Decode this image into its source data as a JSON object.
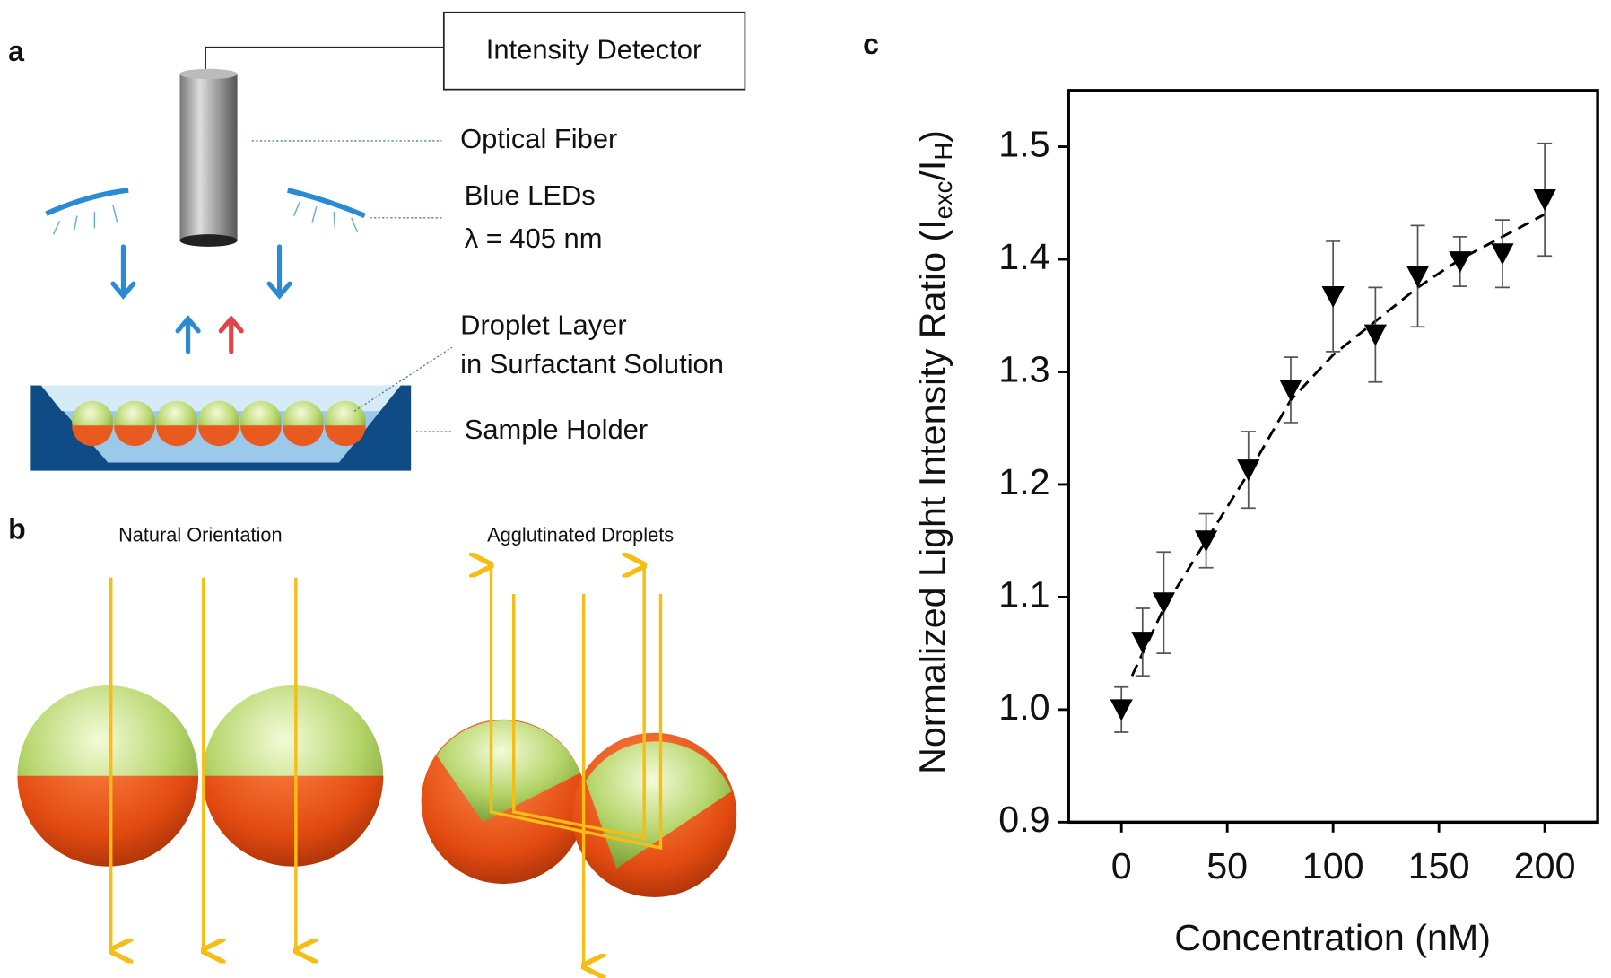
{
  "panel_labels": {
    "a": "a",
    "b": "b",
    "c": "c"
  },
  "diagram_a": {
    "detector": "Intensity Detector",
    "fiber": "Optical Fiber",
    "leds": "Blue LEDs",
    "wavelength": "λ = 405 nm",
    "droplet_layer": "Droplet Layer",
    "solution": "in Surfactant Solution",
    "holder": "Sample Holder"
  },
  "diagram_b": {
    "natural": "Natural Orientation",
    "agglutinated": "Agglutinated Droplets"
  },
  "chart_data": {
    "type": "scatter",
    "xlabel": "Concentration (nM)",
    "ylabel_parts": [
      "Normalized Light Intensity Ratio (I",
      "exc",
      "/I",
      "H",
      ")"
    ],
    "x": [
      0,
      10,
      20,
      40,
      60,
      80,
      100,
      120,
      140,
      160,
      180,
      200
    ],
    "values": [
      1.0,
      1.06,
      1.095,
      1.15,
      1.213,
      1.284,
      1.367,
      1.333,
      1.385,
      1.398,
      1.405,
      1.453
    ],
    "errors": [
      0.02,
      0.03,
      0.045,
      0.024,
      0.034,
      0.029,
      0.049,
      0.042,
      0.045,
      0.022,
      0.03,
      0.05
    ],
    "color": "#000000",
    "fit": {
      "x": [
        5,
        20,
        40,
        60,
        80,
        100,
        120,
        140,
        160,
        180,
        200
      ],
      "values": [
        1.03,
        1.09,
        1.15,
        1.21,
        1.275,
        1.315,
        1.345,
        1.375,
        1.4,
        1.42,
        1.44
      ]
    },
    "xlim": [
      -25,
      225
    ],
    "ylim": [
      0.9,
      1.55
    ],
    "xticks": [
      0,
      50,
      100,
      150,
      200
    ],
    "yticks": [
      0.9,
      {
        "value": 1,
        "label": "1.0"
      },
      1.1,
      1.2,
      1.3,
      1.4,
      1.5
    ]
  }
}
